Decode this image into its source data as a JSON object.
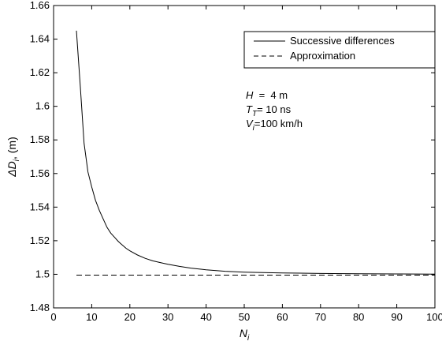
{
  "chart_data": {
    "type": "line",
    "title": "",
    "xlabel": "N",
    "xlabel_sub": "i",
    "ylabel_prefix": "ΔD",
    "ylabel_sub": "i",
    "ylabel_suffix": ", (m)",
    "xlim": [
      0,
      100
    ],
    "ylim": [
      1.48,
      1.66
    ],
    "xticks": [
      0,
      10,
      20,
      30,
      40,
      50,
      60,
      70,
      80,
      90,
      100
    ],
    "yticks": [
      1.48,
      1.5,
      1.52,
      1.54,
      1.56,
      1.58,
      1.6,
      1.62,
      1.64,
      1.66
    ],
    "xtick_labels": [
      "0",
      "10",
      "20",
      "30",
      "40",
      "50",
      "60",
      "70",
      "80",
      "90",
      "100"
    ],
    "ytick_labels": [
      "1.48",
      "1.5",
      "1.52",
      "1.54",
      "1.56",
      "1.58",
      "1.6",
      "1.62",
      "1.64",
      "1.66"
    ],
    "grid": false,
    "legend_position": "top-right",
    "series": [
      {
        "name": "Successive differences",
        "style": "solid",
        "color": "#000000",
        "x": [
          6,
          7,
          8,
          9,
          10,
          11,
          12,
          13,
          14,
          15,
          16,
          17,
          18,
          19,
          20,
          22,
          24,
          26,
          28,
          30,
          33,
          36,
          40,
          45,
          50,
          55,
          60,
          70,
          80,
          90,
          100
        ],
        "y": [
          1.645,
          1.612,
          1.578,
          1.561,
          1.552,
          1.544,
          1.538,
          1.533,
          1.528,
          1.5245,
          1.522,
          1.5195,
          1.5175,
          1.5155,
          1.514,
          1.5115,
          1.5095,
          1.508,
          1.507,
          1.506,
          1.5047,
          1.5037,
          1.5027,
          1.5018,
          1.5013,
          1.501,
          1.5008,
          1.5005,
          1.5003,
          1.5002,
          1.5001
        ]
      },
      {
        "name": "Approximation",
        "style": "dashed",
        "color": "#000000",
        "x": [
          6,
          100
        ],
        "y": [
          1.4995,
          1.4995
        ]
      }
    ],
    "annotations": [
      {
        "var": "H",
        "sub": "",
        "text": "  =  4 m"
      },
      {
        "var": "T",
        "sub": "T",
        "text": "= 10 ns"
      },
      {
        "var": "V",
        "sub": "i",
        "text": "=100 km/h"
      }
    ]
  }
}
